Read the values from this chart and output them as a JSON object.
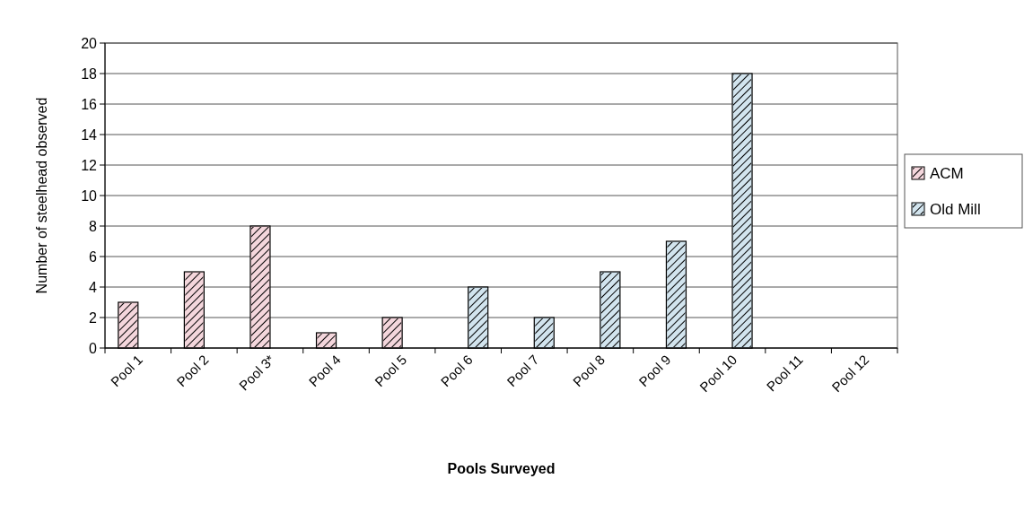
{
  "chart_data": {
    "type": "bar",
    "xlabel": "Pools Surveyed",
    "ylabel": "Number of steelhead observed",
    "categories": [
      "Pool 1",
      "Pool 2",
      "Pool 3*",
      "Pool 4",
      "Pool 5",
      "Pool 6",
      "Pool 7",
      "Pool 8",
      "Pool 9",
      "Pool 10",
      "Pool 11",
      "Pool 12"
    ],
    "series": [
      {
        "name": "ACM",
        "color": "#f4d6dc",
        "values": [
          3,
          5,
          8,
          1,
          2,
          null,
          null,
          null,
          null,
          null,
          null,
          null
        ]
      },
      {
        "name": "Old Mill",
        "color": "#d2e4ee",
        "values": [
          null,
          null,
          null,
          null,
          null,
          4,
          2,
          5,
          7,
          18,
          null,
          null
        ]
      }
    ],
    "ylim": [
      0,
      20
    ],
    "yticks": [
      0,
      2,
      4,
      6,
      8,
      10,
      12,
      14,
      16,
      18,
      20
    ],
    "grid": "y",
    "legend": "right"
  }
}
